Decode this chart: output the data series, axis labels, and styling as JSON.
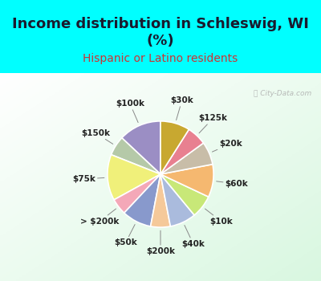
{
  "title": "Income distribution in Schleswig, WI\n(%)",
  "subtitle": "Hispanic or Latino residents",
  "slices": [
    {
      "label": "$100k",
      "value": 13,
      "color": "#9b8ec4"
    },
    {
      "label": "$150k",
      "value": 6,
      "color": "#b5c9a8"
    },
    {
      "label": "$75k",
      "value": 14,
      "color": "#f0f07a"
    },
    {
      "label": "> $200k",
      "value": 5,
      "color": "#f4a8b8"
    },
    {
      "label": "$50k",
      "value": 9,
      "color": "#8899cc"
    },
    {
      "label": "$200k",
      "value": 6,
      "color": "#f5c99a"
    },
    {
      "label": "$40k",
      "value": 8,
      "color": "#aabbdd"
    },
    {
      "label": "$10k",
      "value": 7,
      "color": "#c8e878"
    },
    {
      "label": "$60k",
      "value": 10,
      "color": "#f5b870"
    },
    {
      "label": "$20k",
      "value": 7,
      "color": "#c8bda8"
    },
    {
      "label": "$125k",
      "value": 6,
      "color": "#e88090"
    },
    {
      "label": "$30k",
      "value": 9,
      "color": "#c8a830"
    }
  ],
  "title_fontsize": 13,
  "subtitle_fontsize": 10,
  "label_fontsize": 7.5,
  "watermark": "City-Data.com",
  "outer_bg": "#00ffff",
  "chart_bg_left": "#e8f8f0",
  "chart_bg_right": "#ffffff"
}
